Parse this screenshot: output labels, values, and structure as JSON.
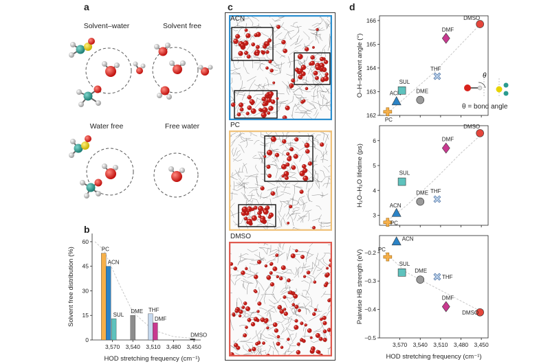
{
  "panel_labels": {
    "a": "a",
    "b": "b",
    "c": "c",
    "d": "d"
  },
  "panel_a": {
    "titles": [
      "Solvent–water",
      "Solvent free",
      "Water free",
      "Free water"
    ]
  },
  "panel_c": {
    "boxes": [
      {
        "label": "ACN",
        "color": "#2c8fcf"
      },
      {
        "label": "PC",
        "color": "#f0c27a"
      },
      {
        "label": "DMSO",
        "color": "#e05a4f"
      }
    ]
  },
  "panel_d": {
    "inset_theta": "θ",
    "inset_caption": "θ = bond angle"
  },
  "markers": {
    "PC": {
      "shape": "cross",
      "color": "#f6b04a"
    },
    "ACN": {
      "shape": "triangle",
      "color": "#2b83c6"
    },
    "SUL": {
      "shape": "square",
      "color": "#5ec2bd"
    },
    "DME": {
      "shape": "circle",
      "color": "#9a9a9a"
    },
    "THF": {
      "shape": "x",
      "color": "#b8cfe8"
    },
    "DMF": {
      "shape": "diamond",
      "color": "#c8398f"
    },
    "DMSO": {
      "shape": "circle",
      "color": "#e4463c"
    }
  },
  "chart_data": [
    {
      "id": "b",
      "type": "bar",
      "xlabel": "HOD stretching frequency (cm⁻¹)",
      "ylabel": "Solvent free distribution (%)",
      "ylim": [
        0,
        65
      ],
      "yticks": [
        0,
        15,
        30,
        45,
        60
      ],
      "xlim": [
        3600,
        3440
      ],
      "xticks": [
        3570,
        3540,
        3510,
        3480,
        3450
      ],
      "xtick_labels": [
        "3,570",
        "3,540",
        "3,510",
        "3,480",
        "3,450"
      ],
      "grid": false,
      "bars": [
        {
          "label": "PC",
          "x": 3583,
          "value": 53,
          "color": "#f6b04a"
        },
        {
          "label": "ACN",
          "x": 3576,
          "value": 45,
          "color": "#2b83c6"
        },
        {
          "label": "SUL",
          "x": 3568,
          "value": 13,
          "color": "#5ec2bd"
        },
        {
          "label": "DME",
          "x": 3540,
          "value": 15,
          "color": "#8d8d8d"
        },
        {
          "label": "THF",
          "x": 3514,
          "value": 16,
          "color": "#c5d8ee"
        },
        {
          "label": "DMF",
          "x": 3507,
          "value": 10.5,
          "color": "#c8398f"
        },
        {
          "label": "DMSO",
          "x": 3452,
          "value": 0.7,
          "color": "#333333"
        }
      ],
      "trend": [
        [
          3596,
          60
        ],
        [
          3583,
          55
        ],
        [
          3560,
          34
        ],
        [
          3540,
          17
        ],
        [
          3510,
          6
        ],
        [
          3480,
          2
        ],
        [
          3452,
          1
        ]
      ]
    },
    {
      "id": "d1",
      "type": "scatter",
      "ylabel": "O–H–solvent angle (°)",
      "ylim": [
        162,
        166.2
      ],
      "yticks": [
        162,
        163,
        164,
        165,
        166
      ],
      "xlim": [
        3600,
        3440
      ],
      "xticks": [
        3570,
        3540,
        3510,
        3480,
        3450
      ],
      "xtick_labels": [
        "",
        "",
        "",
        "",
        ""
      ],
      "points": [
        {
          "label": "PC",
          "x": 3588,
          "y": 162.15
        },
        {
          "label": "ACN",
          "x": 3575,
          "y": 162.6
        },
        {
          "label": "SUL",
          "x": 3567,
          "y": 163.05
        },
        {
          "label": "DME",
          "x": 3540,
          "y": 162.65
        },
        {
          "label": "THF",
          "x": 3515,
          "y": 163.65
        },
        {
          "label": "DMF",
          "x": 3502,
          "y": 165.25
        },
        {
          "label": "DMSO",
          "x": 3452,
          "y": 165.85
        }
      ],
      "trend": [
        [
          3592,
          162.0
        ],
        [
          3560,
          162.8
        ],
        [
          3520,
          163.8
        ],
        [
          3480,
          165.0
        ],
        [
          3448,
          165.95
        ]
      ]
    },
    {
      "id": "d2",
      "type": "scatter",
      "ylabel": "H₂O–H₂O lifetime (ps)",
      "ylim": [
        2.6,
        6.6
      ],
      "yticks": [
        3,
        4,
        5,
        6
      ],
      "xlim": [
        3600,
        3440
      ],
      "xticks": [
        3570,
        3540,
        3510,
        3480,
        3450
      ],
      "xtick_labels": [
        "",
        "",
        "",
        "",
        ""
      ],
      "points": [
        {
          "label": "PC",
          "x": 3588,
          "y": 2.72
        },
        {
          "label": "ACN",
          "x": 3575,
          "y": 3.1
        },
        {
          "label": "SUL",
          "x": 3567,
          "y": 4.35
        },
        {
          "label": "DME",
          "x": 3540,
          "y": 3.55
        },
        {
          "label": "THF",
          "x": 3515,
          "y": 3.65
        },
        {
          "label": "DMF",
          "x": 3502,
          "y": 5.7
        },
        {
          "label": "DMSO",
          "x": 3452,
          "y": 6.3
        }
      ],
      "trend": [
        [
          3592,
          2.7
        ],
        [
          3560,
          3.4
        ],
        [
          3520,
          4.4
        ],
        [
          3480,
          5.5
        ],
        [
          3448,
          6.3
        ]
      ]
    },
    {
      "id": "d3",
      "type": "scatter",
      "xlabel": "HOD stretching frequency (cm⁻¹)",
      "ylabel": "Pairwise HB strength (eV)",
      "ylim": [
        -0.5,
        -0.14
      ],
      "yticks": [
        -0.2,
        -0.3,
        -0.4,
        -0.5
      ],
      "ytick_labels": [
        "−0.2",
        "−0.3",
        "−0.4",
        "−0.5"
      ],
      "xlim": [
        3600,
        3440
      ],
      "xticks": [
        3570,
        3540,
        3510,
        3480,
        3450
      ],
      "xtick_labels": [
        "3,570",
        "3,540",
        "3,510",
        "3,480",
        "3,450"
      ],
      "points": [
        {
          "label": "PC",
          "x": 3588,
          "y": -0.215
        },
        {
          "label": "ACN",
          "x": 3575,
          "y": -0.16
        },
        {
          "label": "SUL",
          "x": 3567,
          "y": -0.27
        },
        {
          "label": "DME",
          "x": 3540,
          "y": -0.295
        },
        {
          "label": "THF",
          "x": 3515,
          "y": -0.285
        },
        {
          "label": "DMF",
          "x": 3502,
          "y": -0.39
        },
        {
          "label": "DMSO",
          "x": 3452,
          "y": -0.41
        }
      ],
      "trend": [
        [
          3592,
          -0.2
        ],
        [
          3560,
          -0.27
        ],
        [
          3520,
          -0.32
        ],
        [
          3480,
          -0.37
        ],
        [
          3448,
          -0.41
        ]
      ]
    }
  ]
}
